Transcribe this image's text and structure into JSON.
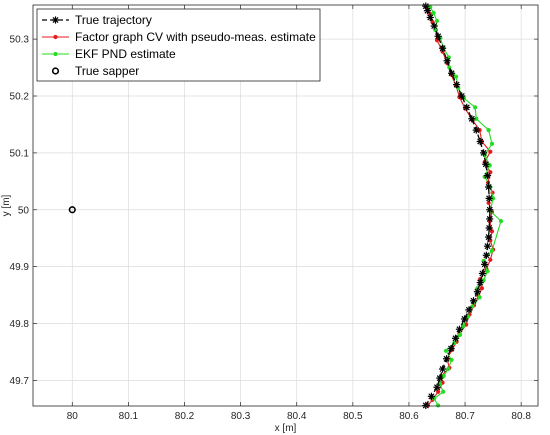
{
  "chart_data": {
    "type": "line",
    "xlabel": "x [m]",
    "ylabel": "y [m]",
    "xlim": [
      79.93,
      80.83
    ],
    "ylim": [
      49.655,
      50.36
    ],
    "xticks": [
      "80",
      "80.1",
      "80.2",
      "80.3",
      "80.4",
      "80.5",
      "80.6",
      "80.7",
      "80.8"
    ],
    "xtick_values": [
      80,
      80.1,
      80.2,
      80.3,
      80.4,
      80.5,
      80.6,
      80.7,
      80.8
    ],
    "yticks": [
      "49.7",
      "49.8",
      "49.9",
      "50",
      "50.1",
      "50.2",
      "50.3"
    ],
    "ytick_values": [
      49.7,
      49.8,
      49.9,
      50,
      50.1,
      50.2,
      50.3
    ],
    "grid": true,
    "legend_position": "top-left",
    "series": [
      {
        "name": "True trajectory",
        "color": "#000000",
        "style": "dashed",
        "marker": "asterisk",
        "points": [
          [
            80.63,
            49.656
          ],
          [
            80.64,
            49.672
          ],
          [
            80.65,
            49.688
          ],
          [
            80.655,
            49.704
          ],
          [
            80.66,
            49.72
          ],
          [
            80.667,
            49.738
          ],
          [
            80.675,
            49.756
          ],
          [
            80.683,
            49.774
          ],
          [
            80.69,
            49.79
          ],
          [
            80.699,
            49.808
          ],
          [
            80.707,
            49.824
          ],
          [
            80.715,
            49.84
          ],
          [
            80.722,
            49.856
          ],
          [
            80.727,
            49.872
          ],
          [
            80.731,
            49.888
          ],
          [
            80.735,
            49.904
          ],
          [
            80.738,
            49.92
          ],
          [
            80.74,
            49.936
          ],
          [
            80.742,
            49.952
          ],
          [
            80.743,
            49.968
          ],
          [
            80.744,
            49.984
          ],
          [
            80.744,
            50.0
          ],
          [
            80.743,
            50.02
          ],
          [
            80.742,
            50.04
          ],
          [
            80.74,
            50.06
          ],
          [
            80.737,
            50.08
          ],
          [
            80.733,
            50.1
          ],
          [
            80.727,
            50.12
          ],
          [
            80.72,
            50.14
          ],
          [
            80.712,
            50.16
          ],
          [
            80.703,
            50.18
          ],
          [
            80.694,
            50.2
          ],
          [
            80.685,
            50.22
          ],
          [
            80.676,
            50.24
          ],
          [
            80.668,
            50.262
          ],
          [
            80.66,
            50.284
          ],
          [
            80.652,
            50.305
          ],
          [
            80.645,
            50.323
          ],
          [
            80.638,
            50.338
          ],
          [
            80.633,
            50.35
          ],
          [
            80.63,
            50.358
          ]
        ]
      },
      {
        "name": "Factor graph CV with pseudo-meas. estimate",
        "color": "#e41a1c",
        "style": "solid",
        "marker": "dot",
        "points": [
          [
            80.634,
            49.656
          ],
          [
            80.642,
            49.666
          ],
          [
            80.652,
            49.68
          ],
          [
            80.66,
            49.696
          ],
          [
            80.658,
            49.708
          ],
          [
            80.672,
            49.722
          ],
          [
            80.668,
            49.738
          ],
          [
            80.677,
            49.754
          ],
          [
            80.685,
            49.768
          ],
          [
            80.69,
            49.782
          ],
          [
            80.702,
            49.798
          ],
          [
            80.708,
            49.816
          ],
          [
            80.716,
            49.832
          ],
          [
            80.724,
            49.848
          ],
          [
            80.73,
            49.862
          ],
          [
            80.727,
            49.878
          ],
          [
            80.738,
            49.896
          ],
          [
            80.745,
            49.912
          ],
          [
            80.75,
            49.93
          ],
          [
            80.745,
            49.946
          ],
          [
            80.748,
            49.962
          ],
          [
            80.744,
            49.98
          ],
          [
            80.748,
            49.996
          ],
          [
            80.742,
            50.012
          ],
          [
            80.749,
            50.03
          ],
          [
            80.741,
            50.048
          ],
          [
            80.745,
            50.066
          ],
          [
            80.735,
            50.084
          ],
          [
            80.745,
            50.102
          ],
          [
            80.73,
            50.12
          ],
          [
            80.726,
            50.14
          ],
          [
            80.713,
            50.158
          ],
          [
            80.7,
            50.178
          ],
          [
            80.69,
            50.198
          ],
          [
            80.684,
            50.218
          ],
          [
            80.675,
            50.238
          ],
          [
            80.668,
            50.258
          ],
          [
            80.66,
            50.278
          ],
          [
            80.65,
            50.298
          ],
          [
            80.648,
            50.316
          ],
          [
            80.642,
            50.33
          ],
          [
            80.638,
            50.344
          ],
          [
            80.634,
            50.354
          ]
        ]
      },
      {
        "name": "EKF PND estimate",
        "color": "#22dd22",
        "style": "solid",
        "marker": "dot",
        "points": [
          [
            80.652,
            49.656
          ],
          [
            80.645,
            49.668
          ],
          [
            80.661,
            49.68
          ],
          [
            80.655,
            49.694
          ],
          [
            80.662,
            49.708
          ],
          [
            80.67,
            49.72
          ],
          [
            80.676,
            49.736
          ],
          [
            80.666,
            49.752
          ],
          [
            80.681,
            49.766
          ],
          [
            80.691,
            49.78
          ],
          [
            80.697,
            49.796
          ],
          [
            80.705,
            49.812
          ],
          [
            80.713,
            49.83
          ],
          [
            80.726,
            49.846
          ],
          [
            80.722,
            49.862
          ],
          [
            80.733,
            49.876
          ],
          [
            80.74,
            49.892
          ],
          [
            80.733,
            49.91
          ],
          [
            80.748,
            49.928
          ],
          [
            80.764,
            49.98
          ],
          [
            80.745,
            49.998
          ],
          [
            80.75,
            50.02
          ],
          [
            80.745,
            50.04
          ],
          [
            80.735,
            50.058
          ],
          [
            80.744,
            50.078
          ],
          [
            80.735,
            50.096
          ],
          [
            80.748,
            50.116
          ],
          [
            80.742,
            50.14
          ],
          [
            80.72,
            50.16
          ],
          [
            80.718,
            50.18
          ],
          [
            80.698,
            50.196
          ],
          [
            80.688,
            50.214
          ],
          [
            80.684,
            50.234
          ],
          [
            80.672,
            50.25
          ],
          [
            80.671,
            50.268
          ],
          [
            80.661,
            50.286
          ],
          [
            80.656,
            50.302
          ],
          [
            80.647,
            50.316
          ],
          [
            80.65,
            50.332
          ],
          [
            80.644,
            50.346
          ],
          [
            80.638,
            50.356
          ]
        ]
      },
      {
        "name": "True sapper",
        "color": "#000000",
        "style": "none",
        "marker": "circle",
        "points": [
          [
            80.0,
            50.0
          ]
        ]
      }
    ]
  }
}
